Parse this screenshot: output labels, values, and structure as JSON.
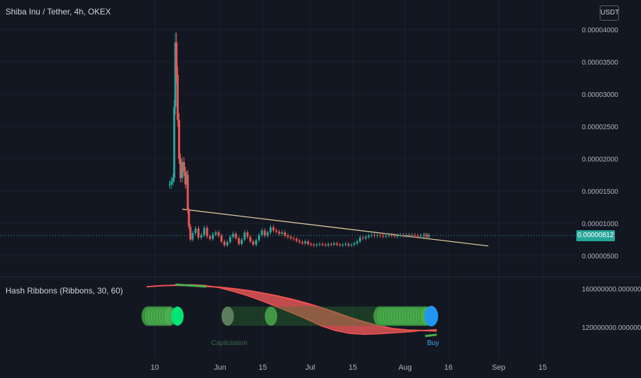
{
  "header": {
    "symbol_title": "Shiba Inu / Tether, 4h, OKEX",
    "currency_button": "USDT"
  },
  "indicator": {
    "title": "Hash Ribbons (Ribbons, 30, 60)",
    "capitulation_label": "Capitulation",
    "buy_label": "Buy"
  },
  "last_price_label": "0.00000812",
  "colors": {
    "background": "#131722",
    "up": "#26a69a",
    "down": "#ef5350",
    "trendline": "#e0c89a",
    "ribbon_fill": "#e05555",
    "ribbon_green": "#4caf50",
    "blue_dot": "#2196f3",
    "grid": "#1e222d"
  },
  "chart_data": [
    {
      "type": "line",
      "title": "Shiba Inu / Tether, 4h, OKEX",
      "subtitle": "",
      "xlabel": "",
      "ylabel": "",
      "x_ticks": [
        "10",
        "Jun",
        "15",
        "Jul",
        "15",
        "Aug",
        "16",
        "Sep",
        "15"
      ],
      "y_ticks": [
        "0.00000500",
        "0.00001000",
        "0.00001500",
        "0.00002000",
        "0.00002500",
        "0.00003000",
        "0.00003500",
        "0.00004000"
      ],
      "ylim": [
        2e-06,
        4.15e-05
      ],
      "grid": true,
      "series": [
        {
          "x": [
            8,
            8.6,
            9.2,
            9.6,
            10,
            10.4,
            10.8,
            11.3,
            11.8,
            12.4,
            13,
            13.5,
            14,
            14.3,
            14.7,
            15.2,
            16,
            17,
            18,
            19,
            20,
            21,
            22,
            23,
            24,
            25,
            26,
            27,
            28,
            29,
            30,
            31,
            32,
            33,
            34,
            35,
            36,
            37,
            38,
            39,
            40,
            41,
            42,
            43,
            44,
            45,
            46,
            47,
            48,
            49,
            50,
            51,
            52,
            53,
            54,
            55,
            56,
            57,
            58,
            59,
            60,
            61,
            62,
            63,
            64,
            65,
            66,
            67,
            68,
            69,
            70,
            71,
            72,
            73,
            74,
            75,
            76,
            77,
            78,
            79,
            80,
            81,
            82,
            83,
            84,
            85,
            86,
            87,
            88,
            89,
            90,
            91,
            92,
            93,
            94,
            95,
            96,
            96.5,
            97,
            97.5,
            98
          ],
          "y": [
            1.6e-05,
            1.65e-05,
            1.7e-05,
            2.8e-05,
            3.8e-05,
            3.3e-05,
            2.6e-05,
            2e-05,
            1.7e-05,
            1.95e-05,
            1.8e-05,
            1.6e-05,
            1.75e-05,
            1.2e-05,
            9.5e-06,
            7.5e-06,
            8.5e-06,
            9.2e-06,
            7.8e-06,
            8.2e-06,
            9.3e-06,
            8e-06,
            7.6e-06,
            8.3e-06,
            8.6e-06,
            8.1e-06,
            7.2e-06,
            6.6e-06,
            7.1e-06,
            7.9e-06,
            8.4e-06,
            7.7e-06,
            6.8e-06,
            7.5e-06,
            8.6e-06,
            7.9e-06,
            7.2e-06,
            6.7e-06,
            7.4e-06,
            8.2e-06,
            8.9e-06,
            8.1e-06,
            8.6e-06,
            9.4e-06,
            8.9e-06,
            8.7e-06,
            8.4e-06,
            8.6e-06,
            8.1e-06,
            7.9e-06,
            7.7e-06,
            7.6e-06,
            7.3e-06,
            7.1e-06,
            6.9e-06,
            7.2e-06,
            6.8e-06,
            6.7e-06,
            6.6e-06,
            6.7e-06,
            6.8e-06,
            6.7e-06,
            6.6e-06,
            6.8e-06,
            6.7e-06,
            6.9e-06,
            6.7e-06,
            6.6e-06,
            6.7e-06,
            6.8e-06,
            6.6e-06,
            6.7e-06,
            6.9e-06,
            7.2e-06,
            7.8e-06,
            7.7e-06,
            7.9e-06,
            8.1e-06,
            8.2e-06,
            8.1e-06,
            8.2e-06,
            8.1e-06,
            8e-06,
            8.1e-06,
            8.2e-06,
            8.1e-06,
            8e-06,
            8.1e-06,
            8.2e-06,
            8.1e-06,
            8.2e-06,
            8.1e-06,
            8.2e-06,
            8.1e-06,
            8e-06,
            8.1e-06,
            8.2e-06,
            8.1e-06,
            8.2e-06,
            8e-06,
            8.1e-06
          ]
        }
      ],
      "last_price": 8.12e-06
    },
    {
      "type": "area",
      "title": "Hash Ribbons (Ribbons, 30, 60)",
      "subtitle": "",
      "xlabel": "",
      "ylabel": "",
      "y_ticks": [
        "120000000.00000000",
        "160000000.00000000"
      ],
      "ylim": [
        112000000,
        168000000
      ],
      "series": [
        {
          "x": [
            0,
            5,
            10,
            15,
            20,
            25,
            30,
            35,
            40,
            45,
            50,
            55,
            60,
            65,
            70,
            75,
            80,
            85,
            90,
            95,
            100
          ],
          "y": [
            162000000,
            163000000,
            163500000,
            163200000,
            162500000,
            161500000,
            160000000,
            158000000,
            155500000,
            152500000,
            149000000,
            145000000,
            140500000,
            135500000,
            130000000,
            125500000,
            121500000,
            118500000,
            117000000,
            116500000,
            116000000
          ]
        },
        {
          "x": [
            0,
            5,
            10,
            15,
            20,
            25,
            30,
            35,
            40,
            45,
            50,
            55,
            60,
            65,
            70,
            75,
            80,
            85,
            90,
            95,
            100
          ],
          "y": [
            162000000,
            163000000,
            163800000,
            164200000,
            163500000,
            161000000,
            157000000,
            152500000,
            147000000,
            141000000,
            135000000,
            128500000,
            121500000,
            116500000,
            113500000,
            112500000,
            113000000,
            114000000,
            115000000,
            116500000,
            117500000
          ]
        }
      ]
    }
  ]
}
